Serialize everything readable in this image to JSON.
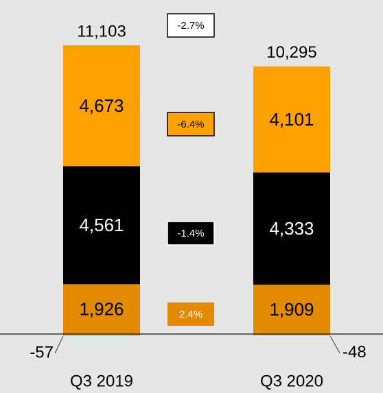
{
  "chart_data": {
    "type": "stacked-bar",
    "categories": [
      "Q3 2019",
      "Q3 2020"
    ],
    "series": [
      {
        "color": "#e28b00",
        "values": [
          -57,
          -48
        ],
        "value_labels": [
          "-57",
          "-48"
        ]
      },
      {
        "color": "#e28b00",
        "values": [
          1926,
          1909
        ],
        "value_labels": [
          "1,926",
          "1,909"
        ]
      },
      {
        "color": "#000000",
        "values": [
          4561,
          4333
        ],
        "value_labels": [
          "4,561",
          "4,333"
        ]
      },
      {
        "color": "#ffa100",
        "values": [
          4673,
          4101
        ],
        "value_labels": [
          "4,673",
          "4,101"
        ]
      }
    ],
    "totals": [
      {
        "value": 11103,
        "label": "11,103"
      },
      {
        "value": 10295,
        "label": "10,295"
      }
    ],
    "change_labels": [
      "-2.7%",
      "-6.4%",
      "-1.4%",
      "2.4%"
    ]
  }
}
